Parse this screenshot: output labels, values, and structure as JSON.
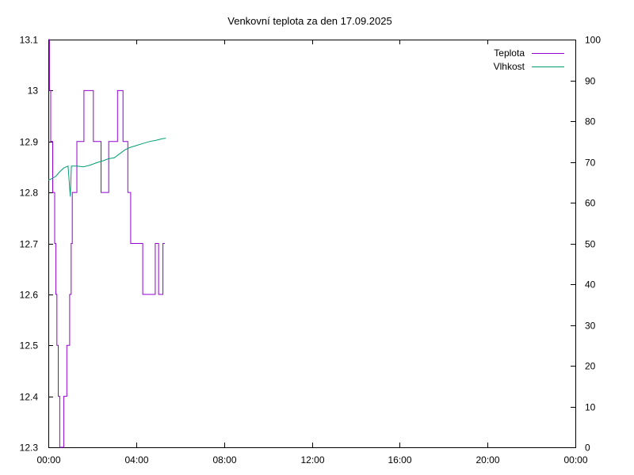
{
  "chart_data": {
    "type": "line",
    "title": "Venkovní teplota za den 17.09.2025",
    "xlabel": "",
    "ylabel": "",
    "x_ticks": [
      "00:00",
      "04:00",
      "08:00",
      "12:00",
      "16:00",
      "20:00",
      "00:00"
    ],
    "x_range_hours": [
      0,
      24
    ],
    "y_left": {
      "range": [
        12.3,
        13.1
      ],
      "ticks": [
        "12.3",
        "12.4",
        "12.5",
        "12.6",
        "12.7",
        "12.8",
        "12.9",
        "13",
        "13.1"
      ]
    },
    "y_right": {
      "range": [
        0,
        100
      ],
      "ticks": [
        "0",
        "10",
        "20",
        "30",
        "40",
        "50",
        "60",
        "70",
        "80",
        "90",
        "100"
      ]
    },
    "grid": false,
    "legend_position": "top-right",
    "series": [
      {
        "name": "Teplota",
        "axis": "left",
        "color": "#9400d3",
        "step": true,
        "points": [
          [
            0.0,
            13.1
          ],
          [
            0.05,
            13.0
          ],
          [
            0.11,
            12.9
          ],
          [
            0.2,
            12.8
          ],
          [
            0.29,
            12.7
          ],
          [
            0.34,
            12.6
          ],
          [
            0.39,
            12.5
          ],
          [
            0.45,
            12.4
          ],
          [
            0.52,
            12.3
          ],
          [
            0.7,
            12.4
          ],
          [
            0.84,
            12.5
          ],
          [
            0.97,
            12.6
          ],
          [
            1.04,
            12.7
          ],
          [
            1.09,
            12.8
          ],
          [
            1.3,
            12.9
          ],
          [
            1.62,
            13.0
          ],
          [
            2.05,
            12.9
          ],
          [
            2.4,
            12.8
          ],
          [
            2.75,
            12.9
          ],
          [
            3.15,
            13.0
          ],
          [
            3.4,
            12.9
          ],
          [
            3.62,
            12.8
          ],
          [
            3.75,
            12.7
          ],
          [
            4.3,
            12.6
          ],
          [
            4.87,
            12.7
          ],
          [
            5.02,
            12.6
          ],
          [
            5.22,
            12.7
          ],
          [
            5.3,
            12.7
          ]
        ]
      },
      {
        "name": "Vlhkost",
        "axis": "right",
        "color": "#009e73",
        "step": false,
        "points": [
          [
            0.0,
            65.5
          ],
          [
            0.2,
            66.0
          ],
          [
            0.35,
            66.5
          ],
          [
            0.5,
            67.5
          ],
          [
            0.7,
            68.5
          ],
          [
            0.9,
            69.0
          ],
          [
            1.0,
            61.5
          ],
          [
            1.05,
            69.0
          ],
          [
            1.3,
            69.0
          ],
          [
            1.6,
            68.8
          ],
          [
            1.9,
            69.2
          ],
          [
            2.2,
            69.8
          ],
          [
            2.5,
            70.3
          ],
          [
            2.75,
            70.8
          ],
          [
            3.0,
            71.0
          ],
          [
            3.2,
            71.8
          ],
          [
            3.5,
            73.0
          ],
          [
            3.7,
            73.5
          ],
          [
            4.0,
            74.0
          ],
          [
            4.3,
            74.5
          ],
          [
            4.6,
            75.0
          ],
          [
            4.9,
            75.3
          ],
          [
            5.2,
            75.7
          ],
          [
            5.35,
            75.8
          ]
        ]
      }
    ]
  }
}
